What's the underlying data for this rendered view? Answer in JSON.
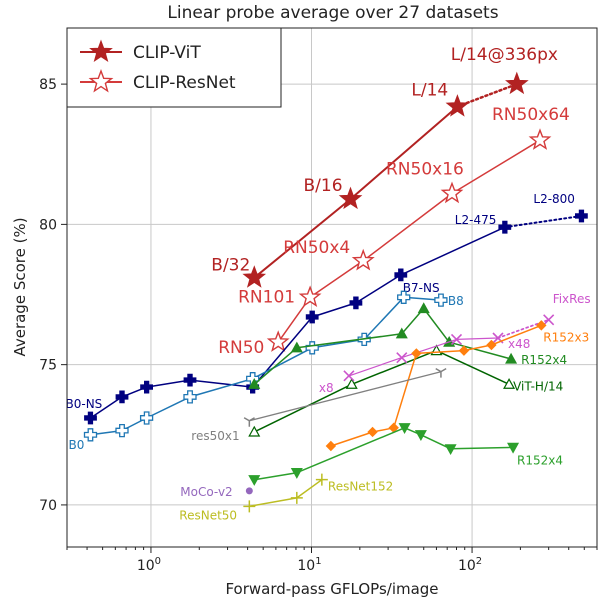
{
  "chart_data": {
    "type": "line",
    "title": "Linear probe average over 27 datasets",
    "xlabel": "Forward-pass GFLOPs/image",
    "ylabel": "Average Score (%)",
    "xscale": "log",
    "xlim": [
      0.3,
      600
    ],
    "ylim": [
      68.5,
      87
    ],
    "grid": true,
    "legend_position": "top-left",
    "x_ticks": [
      {
        "value": 1,
        "base": "10",
        "exp": "0"
      },
      {
        "value": 10,
        "base": "10",
        "exp": "1"
      },
      {
        "value": 100,
        "base": "10",
        "exp": "2"
      }
    ],
    "y_ticks": [
      {
        "value": 70,
        "label": "70"
      },
      {
        "value": 75,
        "label": "75"
      },
      {
        "value": 80,
        "label": "80"
      },
      {
        "value": 85,
        "label": "85"
      }
    ],
    "legend": [
      {
        "name": "CLIP-ViT",
        "color": "#b22222",
        "marker": "star-filled"
      },
      {
        "name": "CLIP-ResNet",
        "color": "#d43b3b",
        "marker": "star-open"
      }
    ],
    "series": [
      {
        "name": "CLIP-ViT",
        "color": "#b22222",
        "marker": "star-filled",
        "size": 11,
        "width": 2,
        "x": [
          4.4,
          17.5,
          81,
          190
        ],
        "y": [
          78.1,
          80.9,
          84.2,
          85.0
        ],
        "dotted_last": true,
        "labels": [
          {
            "text": "B/32",
            "i": 0,
            "dx": -43,
            "dy": -7
          },
          {
            "text": "B/16",
            "i": 1,
            "dx": -47,
            "dy": -8
          },
          {
            "text": "L/14",
            "i": 2,
            "dx": -46,
            "dy": -11
          },
          {
            "text": "L/14@336px",
            "i": 3,
            "dx": -66,
            "dy": -24
          }
        ]
      },
      {
        "name": "CLIP-ResNet",
        "color": "#d43b3b",
        "marker": "star-open",
        "size": 10,
        "width": 1.5,
        "x": [
          6.2,
          9.8,
          21,
          75,
          265
        ],
        "y": [
          75.8,
          77.4,
          78.7,
          81.1,
          83.0
        ],
        "labels": [
          {
            "text": "RN50",
            "i": 0,
            "dx": -60,
            "dy": 11
          },
          {
            "text": "RN101",
            "i": 1,
            "dx": -72,
            "dy": 5
          },
          {
            "text": "RN50x4",
            "i": 2,
            "dx": -80,
            "dy": -8
          },
          {
            "text": "RN50x16",
            "i": 3,
            "dx": -66,
            "dy": -19
          },
          {
            "text": "RN50x64",
            "i": 4,
            "dx": -48,
            "dy": -20
          }
        ]
      },
      {
        "name": "",
        "color": "#000080",
        "marker": "plus-filled",
        "size": 6,
        "width": 1.5,
        "x": [
          0.42,
          0.66,
          0.94,
          1.75,
          4.3,
          10.1,
          18.9,
          36,
          160,
          480
        ],
        "y": [
          73.1,
          73.85,
          74.2,
          74.45,
          74.2,
          76.7,
          77.2,
          78.2,
          79.9,
          80.3
        ],
        "dotted_last": true,
        "labels": [
          {
            "text": "B0-NS",
            "i": 0,
            "dx": -25,
            "dy": -10
          },
          {
            "text": "B7-NS",
            "i": 7,
            "dx": 2,
            "dy": 17
          },
          {
            "text": "L2-475",
            "i": 8,
            "dx": -50,
            "dy": -3
          },
          {
            "text": "L2-800",
            "i": 9,
            "dx": -48,
            "dy": -13
          }
        ]
      },
      {
        "name": "",
        "color": "#1f77b4",
        "marker": "plus-open",
        "size": 6,
        "width": 1.5,
        "x": [
          0.42,
          0.66,
          0.94,
          1.75,
          4.3,
          10.1,
          21.3,
          37.5,
          64
        ],
        "y": [
          72.5,
          72.65,
          73.1,
          73.85,
          74.5,
          75.6,
          75.9,
          77.4,
          77.3
        ],
        "labels": [
          {
            "text": "B0",
            "i": 0,
            "dx": -22,
            "dy": 14
          },
          {
            "text": "B8",
            "i": 8,
            "dx": 7,
            "dy": 5
          }
        ]
      },
      {
        "name": "",
        "color": "#228b22",
        "marker": "triangle-up-filled",
        "size": 5,
        "width": 1.5,
        "x": [
          4.4,
          8.1,
          36.5,
          50,
          72,
          175
        ],
        "y": [
          74.3,
          75.6,
          76.1,
          77.0,
          75.8,
          75.2
        ],
        "labels": [
          {
            "text": "R152x4",
            "i": 5,
            "dx": 10,
            "dy": 5
          }
        ]
      },
      {
        "name": "",
        "color": "#006400",
        "marker": "triangle-up-open",
        "size": 5,
        "width": 1.5,
        "x": [
          4.4,
          17.8,
          60,
          170
        ],
        "y": [
          72.6,
          74.3,
          75.5,
          74.3
        ],
        "labels": [
          {
            "text": "ViT-H/14",
            "i": 3,
            "dx": 4,
            "dy": 6
          }
        ]
      },
      {
        "name": "",
        "color": "#cc55cc",
        "marker": "x",
        "size": 5,
        "width": 1.2,
        "x": [
          17.1,
          36.5,
          80,
          145,
          300
        ],
        "y": [
          74.6,
          75.25,
          75.9,
          75.95,
          76.6
        ],
        "dotted_last": true,
        "labels": [
          {
            "text": "x8",
            "i": 0,
            "dx": -30,
            "dy": 16
          },
          {
            "text": "x48",
            "i": 3,
            "dx": 10,
            "dy": 10
          },
          {
            "text": "FixRes",
            "i": 4,
            "dx": 4,
            "dy": -17
          }
        ]
      },
      {
        "name": "",
        "color": "#ff7f0e",
        "marker": "diamond-filled",
        "size": 4.5,
        "width": 1.5,
        "x": [
          13.2,
          24,
          32.5,
          45,
          89,
          132,
          270
        ],
        "y": [
          72.1,
          72.6,
          72.75,
          75.4,
          75.5,
          75.7,
          76.4
        ],
        "labels": [
          {
            "text": "R152x3",
            "i": 6,
            "dx": 2,
            "dy": 16
          }
        ]
      },
      {
        "name": "",
        "color": "#2ca02c",
        "marker": "triangle-down-filled",
        "size": 5,
        "width": 1.5,
        "x": [
          4.4,
          8.1,
          38,
          48,
          73.5,
          180
        ],
        "y": [
          70.9,
          71.15,
          72.75,
          72.5,
          72.0,
          72.05
        ],
        "labels": [
          {
            "text": "R152x4",
            "i": 5,
            "dx": 4,
            "dy": 17
          }
        ]
      },
      {
        "name": "",
        "color": "#808080",
        "marker": "tri-down",
        "size": 6,
        "width": 1.3,
        "x": [
          4.1,
          64
        ],
        "y": [
          73.0,
          74.75
        ],
        "labels": [
          {
            "text": "res50x1",
            "i": 0,
            "dx": -58,
            "dy": 19
          }
        ]
      },
      {
        "name": "",
        "color": "#9467bd",
        "marker": "circle-filled",
        "size": 3.5,
        "width": 1,
        "x": [
          4.1
        ],
        "y": [
          70.5
        ],
        "labels": [
          {
            "text": "MoCo-v2",
            "i": 0,
            "dx": -69,
            "dy": 5
          }
        ]
      },
      {
        "name": "",
        "color": "#bcbd22",
        "marker": "tri-plus",
        "size": 6,
        "width": 1.5,
        "x": [
          4.1,
          8.1,
          11.6
        ],
        "y": [
          69.95,
          70.25,
          70.9
        ],
        "labels": [
          {
            "text": "ResNet50",
            "i": 0,
            "dx": -70,
            "dy": 13
          },
          {
            "text": "ResNet152",
            "i": 2,
            "dx": 6,
            "dy": 11
          }
        ]
      }
    ]
  }
}
